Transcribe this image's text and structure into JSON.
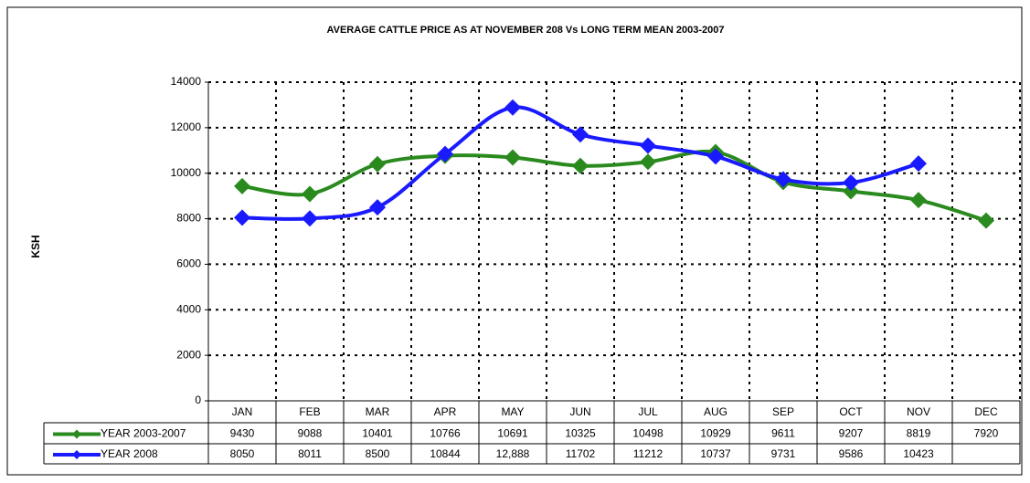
{
  "chart_data": {
    "type": "line",
    "title": "AVERAGE CATTLE PRICE AS AT NOVEMBER 208 Vs LONG TERM MEAN 2003-2007",
    "y_label": "KSH",
    "categories": [
      "JAN",
      "FEB",
      "MAR",
      "APR",
      "MAY",
      "JUN",
      "JUL",
      "AUG",
      "SEP",
      "OCT",
      "NOV",
      "DEC"
    ],
    "series": [
      {
        "name": "YEAR 2003-2007",
        "color": "#2a8a1e",
        "values": [
          9430,
          9088,
          10401,
          10766,
          10691,
          10325,
          10498,
          10929,
          9611,
          9207,
          8819,
          7920
        ]
      },
      {
        "name": "YEAR 2008",
        "color": "#1a1aff",
        "values": [
          8050,
          8011,
          8500,
          10844,
          12888,
          11702,
          11212,
          10737,
          9731,
          9586,
          10423,
          null
        ],
        "value_labels": [
          "8050",
          "8011",
          "8500",
          "10844",
          "12,888",
          "11702",
          "11212",
          "10737",
          "9731",
          "9586",
          "10423",
          null
        ]
      }
    ],
    "ylim": [
      0,
      14000
    ],
    "yticks": [
      0,
      2000,
      4000,
      6000,
      8000,
      10000,
      12000,
      14000
    ],
    "grid": true
  }
}
